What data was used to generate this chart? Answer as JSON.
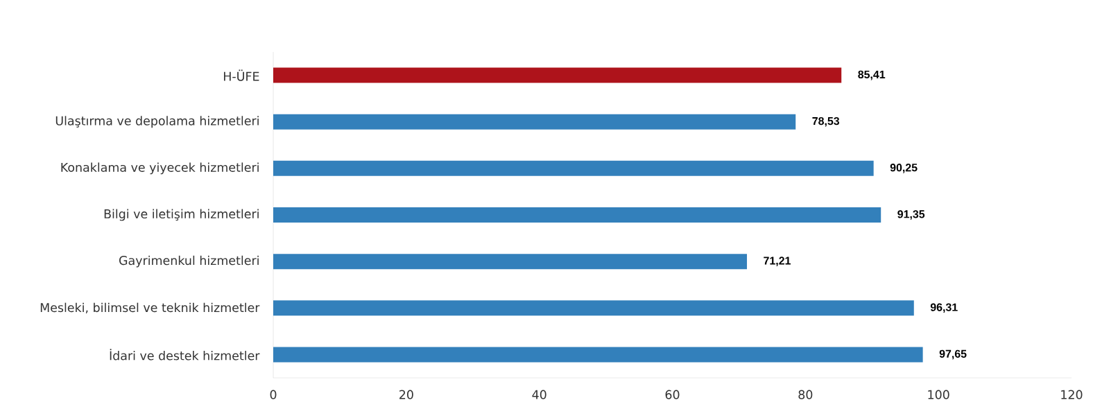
{
  "chart_data": {
    "type": "bar",
    "orientation": "horizontal",
    "categories": [
      "H-ÜFE",
      "Ulaştırma ve depolama hizmetleri",
      "Konaklama ve yiyecek hizmetleri",
      "Bilgi ve iletişim hizmetleri",
      "Gayrimenkul hizmetleri",
      "Mesleki, bilimsel ve teknik hizmetler",
      "İdari ve destek hizmetler"
    ],
    "values": [
      85.41,
      78.53,
      90.25,
      91.35,
      71.21,
      96.31,
      97.65
    ],
    "value_labels": [
      "85,41",
      "78,53",
      "90,25",
      "91,35",
      "71,21",
      "96,31",
      "97,65"
    ],
    "colors": [
      "#ae131b",
      "#3380bb",
      "#3380bb",
      "#3380bb",
      "#3380bb",
      "#3380bb",
      "#3380bb"
    ],
    "xlim": [
      0,
      120
    ],
    "xticks": [
      0,
      20,
      40,
      60,
      80,
      100,
      120
    ],
    "grid": false
  }
}
